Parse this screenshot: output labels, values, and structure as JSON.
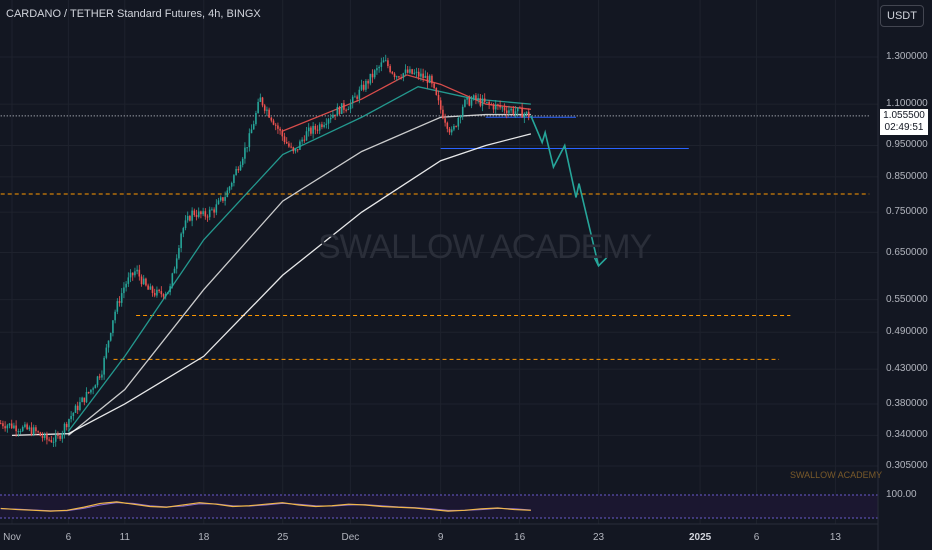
{
  "header": {
    "title": "CARDANO / TETHER Standard Futures, 4h, BINGX",
    "currency_button": "USDT"
  },
  "watermark": "SWALLOW ACADEMY",
  "watermark_small": "SWALLOW ACADEMY",
  "price_badge": {
    "price": "1.055500",
    "countdown": "02:49:51"
  },
  "oscillator_label": "100.00",
  "colors": {
    "background": "#131722",
    "up_candle": "#26a69a",
    "down_candle": "#ef5350",
    "support_line": "#ff9800",
    "resistance_line": "#2962ff",
    "projection": "#26a69a",
    "ma_fast": "#ef5350",
    "ma_mid": "#26a69a",
    "ma_slow": "#e0e0e0",
    "ma_long": "#ffffff",
    "oscillator_main": "#f0b74a",
    "oscillator_signal": "#8e6fd0"
  },
  "chart_data": {
    "type": "candlestick",
    "symbol": "CARDANO / TETHER Standard Futures",
    "timeframe": "4h",
    "exchange": "BINGX",
    "y_scale": "log",
    "ylim": [
      0.28,
      1.45
    ],
    "xlim": [
      "2024-10-31",
      "2025-01-16"
    ],
    "y_ticks": [
      "1.300000",
      "1.100000",
      "0.950000",
      "0.850000",
      "0.750000",
      "0.650000",
      "0.550000",
      "0.490000",
      "0.430000",
      "0.380000",
      "0.340000",
      "0.305000"
    ],
    "x_ticks": [
      {
        "date": "2024-11-01",
        "label": "Nov"
      },
      {
        "date": "2024-11-06",
        "label": "6"
      },
      {
        "date": "2024-11-11",
        "label": "11"
      },
      {
        "date": "2024-11-18",
        "label": "18"
      },
      {
        "date": "2024-11-25",
        "label": "25"
      },
      {
        "date": "2024-12-01",
        "label": "Dec"
      },
      {
        "date": "2024-12-09",
        "label": "9"
      },
      {
        "date": "2024-12-16",
        "label": "16"
      },
      {
        "date": "2024-12-23",
        "label": "23"
      },
      {
        "date": "2025-01-01",
        "label": "2025",
        "bold": true
      },
      {
        "date": "2025-01-06",
        "label": "6"
      },
      {
        "date": "2025-01-13",
        "label": "13"
      }
    ],
    "price_path": [
      [
        "2024-10-31",
        0.355
      ],
      [
        "2024-11-01",
        0.352
      ],
      [
        "2024-11-02",
        0.348
      ],
      [
        "2024-11-03",
        0.345
      ],
      [
        "2024-11-04",
        0.335
      ],
      [
        "2024-11-05",
        0.335
      ],
      [
        "2024-11-06",
        0.36
      ],
      [
        "2024-11-07",
        0.38
      ],
      [
        "2024-11-08",
        0.4
      ],
      [
        "2024-11-09",
        0.43
      ],
      [
        "2024-11-10",
        0.52
      ],
      [
        "2024-11-11",
        0.58
      ],
      [
        "2024-11-12",
        0.61
      ],
      [
        "2024-11-13",
        0.57
      ],
      [
        "2024-11-14",
        0.56
      ],
      [
        "2024-11-15",
        0.57
      ],
      [
        "2024-11-16",
        0.7
      ],
      [
        "2024-11-17",
        0.75
      ],
      [
        "2024-11-18",
        0.74
      ],
      [
        "2024-11-19",
        0.76
      ],
      [
        "2024-11-20",
        0.8
      ],
      [
        "2024-11-21",
        0.88
      ],
      [
        "2024-11-22",
        0.97
      ],
      [
        "2024-11-23",
        1.12
      ],
      [
        "2024-11-24",
        1.05
      ],
      [
        "2024-11-25",
        0.98
      ],
      [
        "2024-11-26",
        0.92
      ],
      [
        "2024-11-27",
        0.99
      ],
      [
        "2024-11-28",
        1.01
      ],
      [
        "2024-11-29",
        1.05
      ],
      [
        "2024-11-30",
        1.08
      ],
      [
        "2024-12-01",
        1.1
      ],
      [
        "2024-12-02",
        1.16
      ],
      [
        "2024-12-03",
        1.22
      ],
      [
        "2024-12-04",
        1.28
      ],
      [
        "2024-12-05",
        1.22
      ],
      [
        "2024-12-06",
        1.23
      ],
      [
        "2024-12-07",
        1.22
      ],
      [
        "2024-12-08",
        1.2
      ],
      [
        "2024-12-09",
        1.08
      ],
      [
        "2024-12-10",
        0.99
      ],
      [
        "2024-12-11",
        1.1
      ],
      [
        "2024-12-12",
        1.12
      ],
      [
        "2024-12-13",
        1.1
      ],
      [
        "2024-12-14",
        1.09
      ],
      [
        "2024-12-15",
        1.08
      ],
      [
        "2024-12-16",
        1.07
      ],
      [
        "2024-12-17",
        1.0555
      ]
    ],
    "moving_averages": [
      {
        "name": "MA fast",
        "color": "#ef5350",
        "points": [
          [
            "2024-11-25",
            1.0
          ],
          [
            "2024-12-02",
            1.12
          ],
          [
            "2024-12-06",
            1.22
          ],
          [
            "2024-12-09",
            1.18
          ],
          [
            "2024-12-13",
            1.1
          ],
          [
            "2024-12-17",
            1.08
          ]
        ]
      },
      {
        "name": "MA mid",
        "color": "#26a69a",
        "points": [
          [
            "2024-11-06",
            0.345
          ],
          [
            "2024-11-11",
            0.45
          ],
          [
            "2024-11-18",
            0.68
          ],
          [
            "2024-11-25",
            0.92
          ],
          [
            "2024-12-02",
            1.05
          ],
          [
            "2024-12-07",
            1.17
          ],
          [
            "2024-12-12",
            1.12
          ],
          [
            "2024-12-17",
            1.1
          ]
        ]
      },
      {
        "name": "MA slow",
        "color": "#e0e0e0",
        "points": [
          [
            "2024-11-06",
            0.34
          ],
          [
            "2024-11-11",
            0.4
          ],
          [
            "2024-11-18",
            0.57
          ],
          [
            "2024-11-25",
            0.78
          ],
          [
            "2024-12-02",
            0.93
          ],
          [
            "2024-12-09",
            1.05
          ],
          [
            "2024-12-13",
            1.06
          ],
          [
            "2024-12-17",
            1.06
          ]
        ]
      },
      {
        "name": "MA long",
        "color": "#ffffff",
        "points": [
          [
            "2024-11-01",
            0.34
          ],
          [
            "2024-11-06",
            0.342
          ],
          [
            "2024-11-11",
            0.38
          ],
          [
            "2024-11-18",
            0.45
          ],
          [
            "2024-11-25",
            0.6
          ],
          [
            "2024-12-02",
            0.75
          ],
          [
            "2024-12-09",
            0.9
          ],
          [
            "2024-12-13",
            0.95
          ],
          [
            "2024-12-17",
            0.99
          ]
        ]
      }
    ],
    "horizontal_lines": [
      {
        "price": 0.8,
        "color": "#ff9800",
        "style": "dashed",
        "from": "2024-10-31",
        "to": "2025-01-16"
      },
      {
        "price": 0.52,
        "color": "#ff9800",
        "style": "dashed",
        "from": "2024-11-12",
        "to": "2025-01-09"
      },
      {
        "price": 0.445,
        "color": "#ff9800",
        "style": "dashed",
        "from": "2024-11-10",
        "to": "2025-01-08"
      },
      {
        "price": 0.94,
        "color": "#2962ff",
        "style": "solid",
        "from": "2024-12-09",
        "to": "2024-12-31"
      },
      {
        "price": 1.05,
        "color": "#2962ff",
        "style": "solid",
        "from": "2024-12-13",
        "to": "2024-12-21"
      },
      {
        "price": 1.055,
        "color": "#d1d4dc",
        "style": "dotted",
        "from": "2024-10-31",
        "to": "2025-01-16"
      }
    ],
    "projection_path": [
      [
        "2024-12-17",
        1.0555
      ],
      [
        "2024-12-18",
        0.96
      ],
      [
        "2024-12-18",
        0.995
      ],
      [
        "2024-12-19",
        0.88
      ],
      [
        "2024-12-20",
        0.95
      ],
      [
        "2024-12-21",
        0.79
      ],
      [
        "2024-12-21",
        0.83
      ],
      [
        "2024-12-23",
        0.62
      ]
    ],
    "oscillator": {
      "label": "100.00",
      "main": [
        55,
        52,
        50,
        48,
        50,
        58,
        68,
        72,
        66,
        60,
        58,
        64,
        70,
        66,
        60,
        62,
        66,
        70,
        64,
        60,
        62,
        66,
        64,
        60,
        58,
        56,
        52,
        48,
        50,
        54,
        56,
        52,
        50
      ],
      "signal": [
        54,
        53,
        51,
        49,
        49,
        55,
        64,
        70,
        68,
        62,
        59,
        61,
        67,
        67,
        62,
        61,
        64,
        68,
        66,
        62,
        61,
        64,
        65,
        62,
        59,
        57,
        54,
        50,
        50,
        52,
        55,
        54,
        51
      ]
    }
  }
}
